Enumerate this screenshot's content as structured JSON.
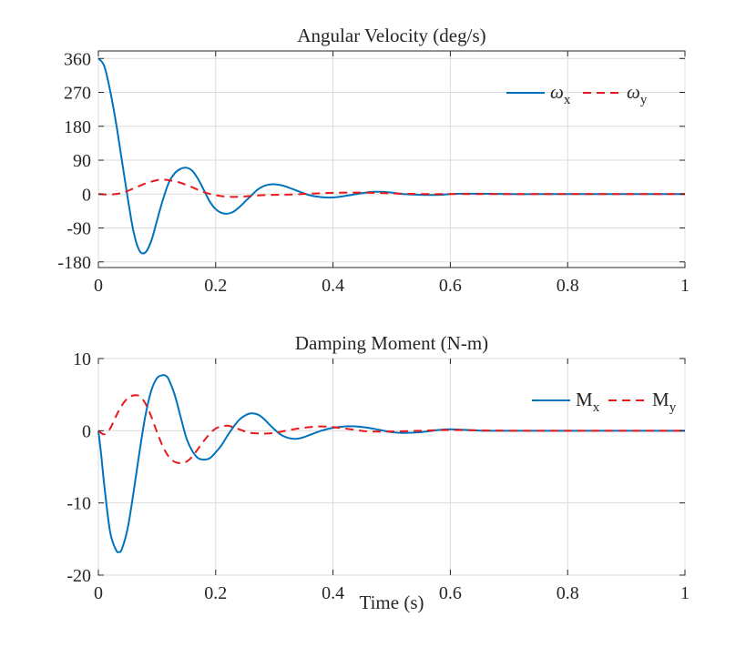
{
  "chart_data": [
    {
      "type": "line",
      "title": "Angular Velocity (deg/s)",
      "xlabel": "",
      "ylabel": "",
      "xlim": [
        0,
        1
      ],
      "ylim": [
        -195,
        380
      ],
      "xticks": [
        0,
        0.2,
        0.4,
        0.6,
        0.8,
        1
      ],
      "xtick_labels": [
        "0",
        "0.2",
        "0.4",
        "0.6",
        "0.8",
        "1"
      ],
      "yticks": [
        -180,
        -90,
        0,
        90,
        180,
        270,
        360
      ],
      "ytick_labels": [
        "-180",
        "-90",
        "0",
        "90",
        "180",
        "270",
        "360"
      ],
      "grid": true,
      "legend": "top-right",
      "series": [
        {
          "name": "ω_x",
          "legend_main": "ω",
          "legend_sub": "x",
          "color": "#0072BD",
          "style": "solid",
          "x": [
            0,
            0.01,
            0.02,
            0.03,
            0.04,
            0.05,
            0.06,
            0.07,
            0.08,
            0.09,
            0.1,
            0.11,
            0.12,
            0.13,
            0.14,
            0.15,
            0.16,
            0.17,
            0.18,
            0.19,
            0.2,
            0.21,
            0.22,
            0.23,
            0.24,
            0.25,
            0.26,
            0.27,
            0.28,
            0.29,
            0.3,
            0.31,
            0.32,
            0.34,
            0.36,
            0.38,
            0.4,
            0.42,
            0.44,
            0.46,
            0.47,
            0.48,
            0.5,
            0.52,
            0.55,
            0.58,
            0.6,
            0.62,
            0.65,
            0.7,
            0.75,
            0.8,
            0.85,
            0.9,
            0.95,
            1.0
          ],
          "y": [
            360,
            340,
            275,
            190,
            90,
            -10,
            -100,
            -150,
            -155,
            -125,
            -70,
            -15,
            30,
            55,
            67,
            70,
            62,
            40,
            10,
            -20,
            -40,
            -50,
            -52,
            -47,
            -35,
            -20,
            -5,
            10,
            20,
            25,
            26,
            24,
            20,
            8,
            -3,
            -8,
            -9,
            -5,
            0,
            5,
            6,
            6,
            4,
            0,
            -2,
            -2,
            0,
            1,
            1,
            0,
            0,
            0,
            0,
            0,
            0,
            0
          ]
        },
        {
          "name": "ω_y",
          "legend_main": "ω",
          "legend_sub": "y",
          "color": "#E8191C",
          "style": "dashed",
          "x": [
            0,
            0.02,
            0.04,
            0.06,
            0.08,
            0.1,
            0.11,
            0.12,
            0.14,
            0.16,
            0.18,
            0.2,
            0.22,
            0.24,
            0.26,
            0.28,
            0.3,
            0.33,
            0.36,
            0.39,
            0.42,
            0.45,
            0.48,
            0.52,
            0.56,
            0.6,
            0.7,
            0.8,
            0.9,
            1.0
          ],
          "y": [
            0,
            -1,
            3,
            15,
            28,
            37,
            38,
            37,
            30,
            18,
            5,
            -3,
            -7,
            -7,
            -5,
            -3,
            -2,
            -1,
            1,
            3,
            4,
            4,
            3,
            1,
            0,
            0,
            0,
            0,
            0,
            0
          ]
        }
      ]
    },
    {
      "type": "line",
      "title": "Damping Moment (N-m)",
      "xlabel": "Time (s)",
      "ylabel": "",
      "xlim": [
        0,
        1
      ],
      "ylim": [
        -20,
        10
      ],
      "xticks": [
        0,
        0.2,
        0.4,
        0.6,
        0.8,
        1
      ],
      "xtick_labels": [
        "0",
        "0.2",
        "0.4",
        "0.6",
        "0.8",
        "1"
      ],
      "yticks": [
        -20,
        -10,
        0,
        10
      ],
      "ytick_labels": [
        "-20",
        "-10",
        "0",
        "10"
      ],
      "grid": true,
      "legend": "top-right",
      "series": [
        {
          "name": "M_x",
          "legend_main": "M",
          "legend_sub": "x",
          "color": "#0072BD",
          "style": "solid",
          "x": [
            0,
            0.005,
            0.01,
            0.02,
            0.03,
            0.035,
            0.04,
            0.05,
            0.06,
            0.07,
            0.08,
            0.09,
            0.1,
            0.11,
            0.115,
            0.12,
            0.13,
            0.14,
            0.15,
            0.16,
            0.17,
            0.18,
            0.19,
            0.2,
            0.21,
            0.22,
            0.23,
            0.24,
            0.25,
            0.26,
            0.27,
            0.28,
            0.29,
            0.3,
            0.31,
            0.32,
            0.33,
            0.34,
            0.35,
            0.36,
            0.38,
            0.4,
            0.42,
            0.44,
            0.46,
            0.48,
            0.5,
            0.52,
            0.55,
            0.58,
            0.6,
            0.63,
            0.66,
            0.7,
            0.75,
            0.8,
            0.9,
            1.0
          ],
          "y": [
            0,
            -3.5,
            -7.5,
            -14,
            -16.5,
            -16.8,
            -16.4,
            -13.5,
            -8.5,
            -3,
            2,
            5.5,
            7.3,
            7.7,
            7.6,
            7.1,
            5,
            2,
            -1,
            -2.8,
            -3.8,
            -4,
            -3.8,
            -3,
            -2,
            -0.7,
            0.5,
            1.5,
            2.1,
            2.4,
            2.3,
            1.8,
            1,
            0.2,
            -0.5,
            -0.9,
            -1.1,
            -1.1,
            -0.9,
            -0.6,
            0,
            0.4,
            0.6,
            0.6,
            0.4,
            0.1,
            -0.2,
            -0.3,
            -0.2,
            0.1,
            0.2,
            0.1,
            0,
            0,
            0,
            0,
            0,
            0
          ]
        },
        {
          "name": "M_y",
          "legend_main": "M",
          "legend_sub": "y",
          "color": "#E8191C",
          "style": "dashed",
          "x": [
            0,
            0.01,
            0.02,
            0.03,
            0.04,
            0.05,
            0.06,
            0.07,
            0.08,
            0.09,
            0.1,
            0.11,
            0.12,
            0.13,
            0.14,
            0.15,
            0.16,
            0.17,
            0.18,
            0.19,
            0.2,
            0.21,
            0.22,
            0.23,
            0.24,
            0.25,
            0.26,
            0.28,
            0.3,
            0.32,
            0.34,
            0.36,
            0.38,
            0.4,
            0.42,
            0.44,
            0.46,
            0.5,
            0.55,
            0.6,
            0.7,
            0.8,
            0.9,
            1.0
          ],
          "y": [
            0,
            -0.5,
            0.3,
            2,
            3.5,
            4.5,
            4.9,
            4.8,
            3.8,
            2,
            -0.2,
            -2.2,
            -3.6,
            -4.3,
            -4.5,
            -4.3,
            -3.6,
            -2.5,
            -1.4,
            -0.4,
            0.3,
            0.6,
            0.7,
            0.5,
            0.2,
            -0.1,
            -0.3,
            -0.4,
            -0.3,
            0,
            0.3,
            0.5,
            0.6,
            0.5,
            0.3,
            0.1,
            -0.1,
            -0.1,
            0,
            0.1,
            0,
            0,
            0,
            0
          ]
        }
      ]
    }
  ]
}
